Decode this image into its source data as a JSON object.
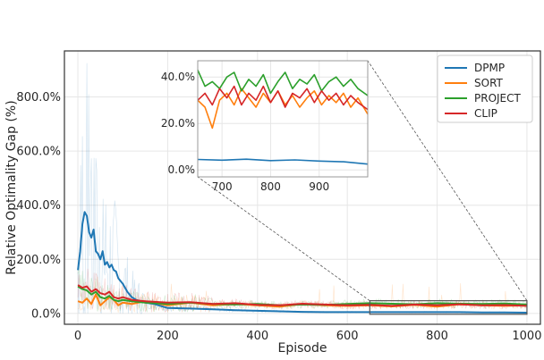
{
  "chart_data": {
    "type": "line",
    "xlabel": "Episode",
    "ylabel": "Relative Optimality Gap (%)",
    "xlim": [
      -30,
      1030
    ],
    "ylim": [
      -40,
      970
    ],
    "xticks": [
      0,
      200,
      400,
      600,
      800,
      1000
    ],
    "yticks": [
      0,
      200,
      400,
      600,
      800
    ],
    "ytick_labels": [
      "0.0%",
      "200.0%",
      "400.0%",
      "600.0%",
      "800.0%"
    ],
    "grid": true,
    "legend_placement": "top-right",
    "series": [
      {
        "name": "DPMP",
        "color": "#1f77b4",
        "x": [
          0,
          5,
          10,
          15,
          20,
          25,
          30,
          35,
          40,
          45,
          50,
          55,
          60,
          65,
          70,
          75,
          80,
          85,
          90,
          100,
          110,
          120,
          130,
          140,
          150,
          170,
          200,
          250,
          300,
          350,
          400,
          450,
          500,
          550,
          600,
          650,
          700,
          750,
          800,
          850,
          900,
          950,
          1000
        ],
        "values": [
          160,
          230,
          330,
          375,
          360,
          300,
          280,
          310,
          230,
          220,
          200,
          230,
          180,
          190,
          170,
          180,
          160,
          155,
          130,
          110,
          80,
          60,
          50,
          45,
          40,
          35,
          20,
          18,
          15,
          12,
          10,
          8,
          6,
          5,
          5,
          5,
          5,
          5,
          5,
          5,
          4,
          4,
          3
        ]
      },
      {
        "name": "SORT",
        "color": "#ff7f0e",
        "x": [
          0,
          10,
          20,
          30,
          40,
          50,
          60,
          70,
          80,
          90,
          100,
          120,
          150,
          200,
          250,
          300,
          350,
          400,
          450,
          500,
          550,
          600,
          650,
          700,
          750,
          800,
          850,
          900,
          950,
          1000
        ],
        "values": [
          45,
          40,
          55,
          35,
          70,
          30,
          45,
          60,
          50,
          30,
          40,
          35,
          45,
          30,
          40,
          30,
          35,
          30,
          25,
          35,
          30,
          28,
          30,
          26,
          32,
          25,
          34,
          30,
          28,
          30
        ]
      },
      {
        "name": "PROJECT",
        "color": "#2ca02c",
        "x": [
          0,
          10,
          20,
          30,
          40,
          50,
          60,
          70,
          80,
          90,
          100,
          120,
          150,
          200,
          250,
          300,
          350,
          400,
          450,
          500,
          550,
          600,
          650,
          700,
          750,
          800,
          850,
          900,
          950,
          1000
        ],
        "values": [
          100,
          90,
          85,
          70,
          80,
          60,
          55,
          65,
          50,
          45,
          50,
          45,
          40,
          35,
          40,
          35,
          33,
          35,
          30,
          33,
          32,
          35,
          38,
          36,
          34,
          38,
          36,
          35,
          37,
          33
        ]
      },
      {
        "name": "CLIP",
        "color": "#d62728",
        "x": [
          0,
          10,
          20,
          30,
          40,
          50,
          60,
          70,
          80,
          90,
          100,
          120,
          150,
          200,
          250,
          300,
          350,
          400,
          450,
          500,
          550,
          600,
          650,
          700,
          750,
          800,
          850,
          900,
          950,
          1000
        ],
        "values": [
          105,
          95,
          100,
          80,
          90,
          75,
          70,
          80,
          60,
          55,
          60,
          50,
          45,
          40,
          42,
          35,
          38,
          32,
          30,
          36,
          33,
          30,
          32,
          28,
          33,
          30,
          34,
          30,
          31,
          28
        ]
      }
    ],
    "inset": {
      "xlim": [
        650,
        1000
      ],
      "ylim": [
        -3,
        47
      ],
      "xticks": [
        700,
        800,
        900
      ],
      "yticks": [
        0,
        20,
        40
      ],
      "ytick_labels": [
        "0.0%",
        "20.0%",
        "40.0%"
      ],
      "series": [
        {
          "name": "DPMP",
          "x": [
            650,
            700,
            750,
            800,
            850,
            900,
            950,
            1000
          ],
          "values": [
            4.5,
            4.2,
            4.6,
            4.0,
            4.3,
            3.8,
            3.5,
            2.5
          ]
        },
        {
          "name": "SORT",
          "x": [
            650,
            665,
            680,
            695,
            710,
            725,
            740,
            755,
            770,
            785,
            800,
            815,
            830,
            845,
            860,
            875,
            890,
            905,
            920,
            935,
            950,
            965,
            980,
            1000
          ],
          "values": [
            30,
            27,
            18,
            30,
            33,
            28,
            35,
            31,
            27,
            33,
            29,
            34,
            28,
            32,
            27,
            31,
            34,
            28,
            32,
            29,
            33,
            27,
            31,
            24
          ]
        },
        {
          "name": "PROJECT",
          "x": [
            650,
            665,
            680,
            695,
            710,
            725,
            740,
            755,
            770,
            785,
            800,
            815,
            830,
            845,
            860,
            875,
            890,
            905,
            920,
            935,
            950,
            965,
            980,
            1000
          ],
          "values": [
            43,
            36,
            38,
            35,
            40,
            42,
            34,
            39,
            36,
            41,
            33,
            38,
            42,
            35,
            39,
            37,
            41,
            34,
            38,
            40,
            36,
            39,
            35,
            32
          ]
        },
        {
          "name": "CLIP",
          "x": [
            650,
            665,
            680,
            695,
            710,
            725,
            740,
            755,
            770,
            785,
            800,
            815,
            830,
            845,
            860,
            875,
            890,
            905,
            920,
            935,
            950,
            965,
            980,
            1000
          ],
          "values": [
            30,
            33,
            28,
            35,
            31,
            36,
            28,
            33,
            30,
            36,
            29,
            34,
            27,
            33,
            31,
            35,
            29,
            34,
            30,
            33,
            28,
            32,
            29,
            26
          ]
        }
      ]
    }
  }
}
